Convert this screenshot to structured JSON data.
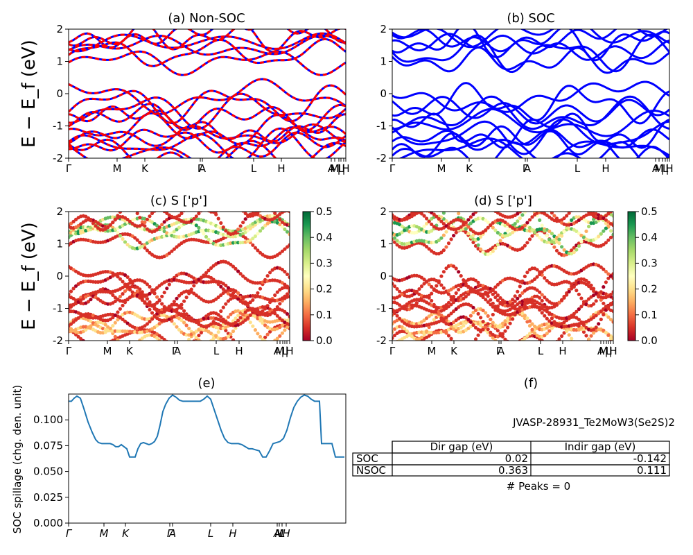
{
  "chart_data": [
    {
      "id": "a",
      "type": "line",
      "title": "(a) Non-SOC",
      "ylabel": "E − E_f (eV)",
      "ylim": [
        -2,
        2
      ],
      "yticks": [
        "-2",
        "-1",
        "0",
        "1",
        "2"
      ],
      "kpath_labels": [
        "Γ",
        "M",
        "K",
        "Γ",
        "A",
        "L",
        "H",
        "A",
        "M",
        "|",
        "L",
        "|",
        "H",
        "K"
      ],
      "series": [
        {
          "color": "#0000ff",
          "style": "solid"
        },
        {
          "color": "#ff0000",
          "style": "dashed"
        }
      ]
    },
    {
      "id": "b",
      "type": "line",
      "title": "(b) SOC",
      "ylim": [
        -2,
        2
      ],
      "yticks": [
        "-2",
        "-1",
        "0",
        "1",
        "2"
      ],
      "kpath_labels": [
        "Γ",
        "M",
        "K",
        "Γ",
        "A",
        "L",
        "H",
        "A",
        "M",
        "|",
        "L",
        "|",
        "H",
        "K"
      ],
      "series": [
        {
          "color": "#0000ff",
          "style": "solid"
        }
      ]
    },
    {
      "id": "c",
      "type": "scatter",
      "title": "(c)  S ['p']",
      "ylabel": "E − E_f (eV)",
      "ylim": [
        -2,
        2
      ],
      "yticks": [
        "-2",
        "-1",
        "0",
        "1",
        "2"
      ],
      "kpath_labels": [
        "Γ",
        "M",
        "K",
        "Γ",
        "A",
        "L",
        "H",
        "A",
        "M",
        "|",
        "L",
        "|",
        "H",
        "K"
      ],
      "colorbar": {
        "cmap": "RdYlGn",
        "min": 0.0,
        "max": 0.5,
        "ticks": [
          "0.0",
          "0.1",
          "0.2",
          "0.3",
          "0.4",
          "0.5"
        ]
      }
    },
    {
      "id": "d",
      "type": "scatter",
      "title": "(d) S ['p']",
      "ylim": [
        -2,
        2
      ],
      "yticks": [
        "-2",
        "-1",
        "0",
        "1",
        "2"
      ],
      "kpath_labels": [
        "Γ",
        "M",
        "K",
        "Γ",
        "A",
        "L",
        "H",
        "A",
        "M",
        "|",
        "L",
        "|",
        "H",
        "K"
      ],
      "colorbar": {
        "cmap": "RdYlGn",
        "min": 0.0,
        "max": 0.5,
        "ticks": [
          "0.0",
          "0.1",
          "0.2",
          "0.3",
          "0.4",
          "0.5"
        ]
      }
    },
    {
      "id": "e",
      "type": "line",
      "title": "(e)",
      "ylabel": "SOC spillage (chg. den. unit)",
      "ylim": [
        0,
        0.125
      ],
      "yticks": [
        "0.000",
        "0.025",
        "0.050",
        "0.075",
        "0.100"
      ],
      "kpath_labels": [
        "Γ",
        "M",
        "K",
        "Γ",
        "A",
        "L",
        "H",
        "A",
        "M",
        "L",
        "H"
      ],
      "line_color": "#1f77b4",
      "x": [
        0,
        4,
        8,
        12,
        17,
        22,
        28,
        34,
        39,
        43,
        48,
        55,
        60,
        64,
        68,
        72,
        76,
        80,
        84,
        88,
        92,
        96,
        100,
        104,
        108,
        112,
        116,
        120,
        124,
        128,
        132,
        136,
        140,
        145,
        150,
        155,
        160,
        165,
        170,
        175,
        180,
        185,
        190,
        195,
        200,
        205,
        210,
        215,
        220,
        225,
        230,
        235,
        240,
        245,
        250,
        255,
        260,
        265,
        270,
        275,
        280,
        285,
        290,
        295,
        300,
        305,
        310,
        315,
        320,
        325,
        330,
        335,
        340,
        345,
        350,
        355,
        362,
        365,
        370,
        375,
        380,
        385,
        390,
        395,
        398
      ],
      "values": [
        0.118,
        0.118,
        0.121,
        0.123,
        0.121,
        0.111,
        0.098,
        0.088,
        0.081,
        0.078,
        0.077,
        0.077,
        0.077,
        0.076,
        0.074,
        0.074,
        0.076,
        0.074,
        0.072,
        0.064,
        0.064,
        0.064,
        0.072,
        0.077,
        0.078,
        0.077,
        0.076,
        0.077,
        0.079,
        0.084,
        0.095,
        0.108,
        0.115,
        0.121,
        0.124,
        0.122,
        0.119,
        0.118,
        0.118,
        0.118,
        0.118,
        0.118,
        0.118,
        0.12,
        0.123,
        0.12,
        0.11,
        0.1,
        0.09,
        0.082,
        0.078,
        0.077,
        0.077,
        0.077,
        0.076,
        0.074,
        0.072,
        0.072,
        0.071,
        0.07,
        0.064,
        0.064,
        0.07,
        0.077,
        0.078,
        0.079,
        0.082,
        0.09,
        0.102,
        0.112,
        0.118,
        0.122,
        0.124,
        0.123,
        0.12,
        0.118,
        0.118,
        0.077,
        0.077,
        0.077,
        0.077,
        0.064,
        0.064,
        0.064,
        0.064
      ]
    }
  ],
  "panel_f": {
    "title": "(f)",
    "material": "JVASP-28931_Te2MoW3(Se2S)2",
    "table": {
      "headers": [
        "",
        "Dir gap (eV)",
        "Indir gap (eV)"
      ],
      "rows": [
        {
          "label": "SOC",
          "dir": "0.02",
          "indir": "-0.142"
        },
        {
          "label": "NSOC",
          "dir": "0.363",
          "indir": "0.111"
        }
      ]
    },
    "peaks": "# Peaks = 0"
  }
}
